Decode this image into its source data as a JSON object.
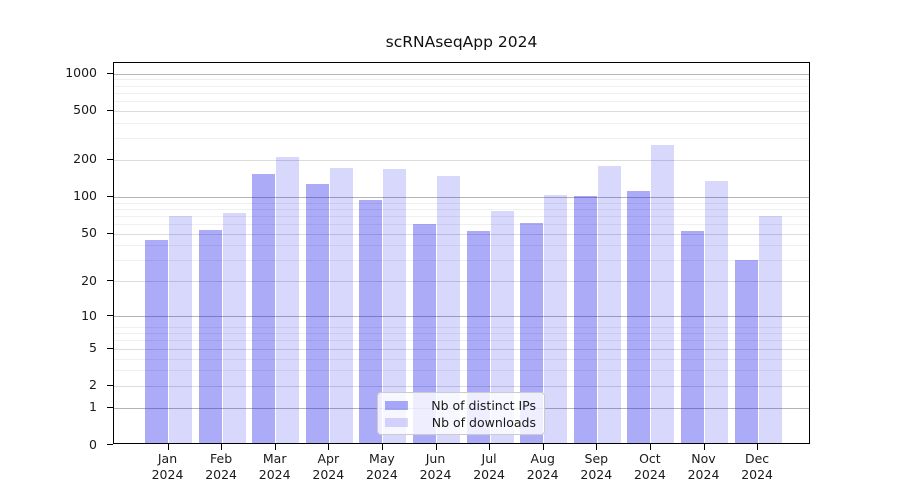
{
  "title": "scRNAseqApp 2024",
  "chart_data": {
    "type": "bar",
    "title": "scRNAseqApp 2024",
    "x": {
      "months": [
        "Jan",
        "Feb",
        "Mar",
        "Apr",
        "May",
        "Jun",
        "Jul",
        "Aug",
        "Sep",
        "Oct",
        "Nov",
        "Dec"
      ],
      "year": "2024"
    },
    "y_axis": {
      "scale": "log1p",
      "ticks": [
        0,
        1,
        2,
        5,
        10,
        20,
        50,
        100,
        200,
        500,
        1000
      ],
      "minor_ticks": [
        3,
        4,
        6,
        7,
        8,
        30,
        40,
        60,
        70,
        80,
        90,
        300,
        400,
        600,
        700,
        800,
        900
      ],
      "major_grid_ticks": [
        1,
        10,
        100,
        1000
      ],
      "ylim": [
        0,
        1220
      ]
    },
    "series": [
      {
        "name": "Nb of distinct IPs",
        "color": "rgba(15,15,235,0.35)",
        "values": [
          44,
          54,
          153,
          128,
          95,
          60,
          53,
          61,
          102,
          112,
          53,
          30
        ]
      },
      {
        "name": "Nb of downloads",
        "color": "rgba(15,15,235,0.16)",
        "values": [
          70,
          74,
          210,
          173,
          168,
          148,
          77,
          103,
          180,
          265,
          135,
          70
        ]
      }
    ],
    "legend": {
      "entries": [
        "Nb of distinct IPs",
        "Nb of downloads"
      ],
      "position": "lower center"
    },
    "grid": true,
    "colors": {
      "major_gridline": "#b4b4b4",
      "labeled_gridline": "#dcdcdc",
      "minor_gridline": "#efefef",
      "spine": "#000000"
    }
  }
}
